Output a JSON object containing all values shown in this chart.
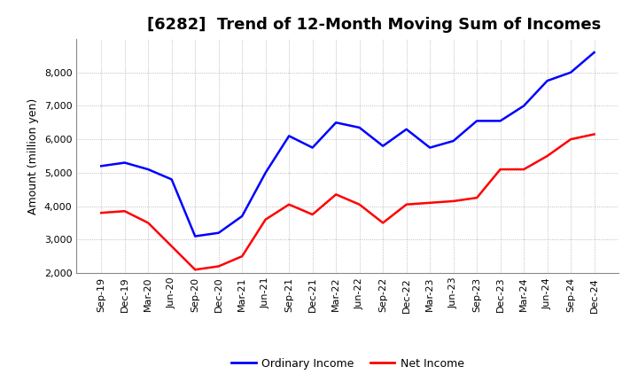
{
  "title": "[6282]  Trend of 12-Month Moving Sum of Incomes",
  "ylabel": "Amount (million yen)",
  "ylim": [
    2000,
    9000
  ],
  "yticks": [
    2000,
    3000,
    4000,
    5000,
    6000,
    7000,
    8000
  ],
  "background_color": "#ffffff",
  "grid_color": "#aaaaaa",
  "ordinary_income_color": "#0000ff",
  "net_income_color": "#ff0000",
  "line_width": 1.8,
  "x_labels": [
    "Sep-19",
    "Dec-19",
    "Mar-20",
    "Jun-20",
    "Sep-20",
    "Dec-20",
    "Mar-21",
    "Jun-21",
    "Sep-21",
    "Dec-21",
    "Mar-22",
    "Jun-22",
    "Sep-22",
    "Dec-22",
    "Mar-23",
    "Jun-23",
    "Sep-23",
    "Dec-23",
    "Mar-24",
    "Jun-24",
    "Sep-24",
    "Dec-24"
  ],
  "ordinary_income": [
    5200,
    5300,
    5100,
    4800,
    3100,
    3200,
    3700,
    5000,
    6100,
    5750,
    6500,
    6350,
    5800,
    6300,
    5750,
    5950,
    6550,
    6550,
    7000,
    7750,
    8000,
    8600
  ],
  "net_income": [
    3800,
    3850,
    3500,
    2800,
    2100,
    2200,
    2500,
    3600,
    4050,
    3750,
    4350,
    4050,
    3500,
    4050,
    4100,
    4150,
    4250,
    5100,
    5100,
    5500,
    6000,
    6150
  ],
  "legend_labels": [
    "Ordinary Income",
    "Net Income"
  ],
  "title_fontsize": 13,
  "axis_label_fontsize": 9,
  "tick_fontsize": 8
}
